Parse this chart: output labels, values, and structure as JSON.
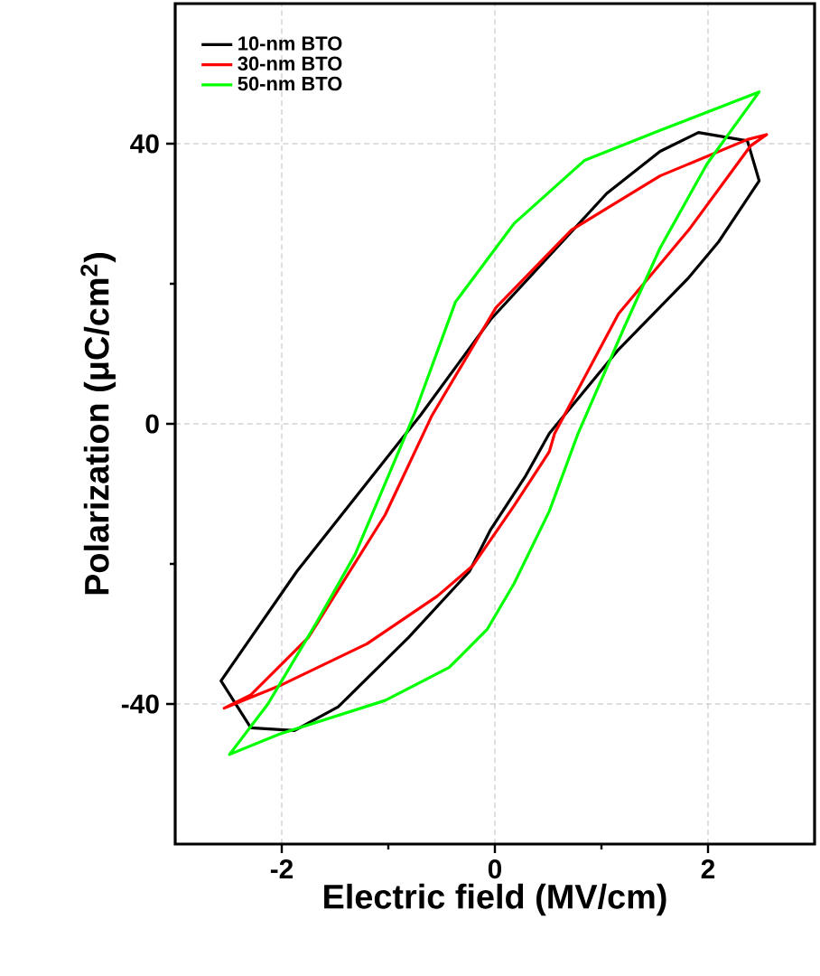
{
  "chart_data": {
    "type": "line",
    "xlabel": "Electric field (MV/cm)",
    "ylabel": "Polarization (μC/cm$^{2}$)",
    "xlim": [
      -3,
      3
    ],
    "ylim": [
      -60,
      60
    ],
    "xticks": [
      -2,
      0,
      2
    ],
    "yticks": [
      -40,
      0,
      40
    ],
    "grid": true,
    "legend": "top left",
    "marker": "none",
    "line_style": "solid",
    "series": [
      {
        "name": "10-nm BTO",
        "color": "#000000",
        "x": [
          1.91,
          2.37,
          2.48,
          2.1,
          1.82,
          1.16,
          0.51,
          0.29,
          -0.04,
          -0.24,
          -0.81,
          -1.47,
          -1.88,
          -2.29,
          -2.57,
          -1.86,
          -0.7,
          -0.04,
          1.05,
          1.55,
          1.91,
          2.37
        ],
        "values": [
          41.6,
          40.4,
          34.7,
          26.0,
          20.9,
          10.6,
          -1.4,
          -7.4,
          -15.1,
          -21.1,
          -30.5,
          -40.4,
          -43.8,
          -43.4,
          -36.7,
          -21.1,
          1.2,
          14.9,
          32.9,
          38.9,
          41.6,
          40.4
        ]
      },
      {
        "name": "30-nm BTO",
        "color": "#ff0000",
        "x": [
          2.55,
          2.4,
          1.82,
          1.16,
          0.56,
          0.51,
          0.18,
          -0.21,
          -0.54,
          -1.2,
          -2.02,
          -2.54,
          -2.29,
          -1.75,
          -1.03,
          -0.59,
          0.01,
          0.72,
          1.55,
          2.37,
          2.55,
          2.4
        ],
        "values": [
          41.3,
          39.7,
          27.7,
          15.7,
          -1.4,
          -4.0,
          -11.7,
          -20.3,
          -24.6,
          -31.4,
          -37.4,
          -40.6,
          -38.7,
          -30.5,
          -13.0,
          1.2,
          16.6,
          27.7,
          35.4,
          40.6,
          41.3,
          39.7
        ]
      },
      {
        "name": "50-nm BTO",
        "color": "#00ff00",
        "x": [
          2.48,
          1.99,
          1.55,
          1.22,
          0.78,
          0.51,
          0.18,
          -0.07,
          -0.43,
          -1.03,
          -2.02,
          -2.49,
          -2.13,
          -1.69,
          -1.31,
          -0.76,
          -0.37,
          0.18,
          0.84,
          1.55,
          2.48,
          1.99
        ],
        "values": [
          47.4,
          37.1,
          25.1,
          14.0,
          -1.4,
          -12.5,
          -22.8,
          -29.3,
          -34.8,
          -39.5,
          -44.3,
          -47.2,
          -40.0,
          -28.8,
          -18.6,
          1.2,
          17.4,
          28.6,
          37.6,
          41.9,
          47.4,
          37.1
        ]
      }
    ]
  }
}
